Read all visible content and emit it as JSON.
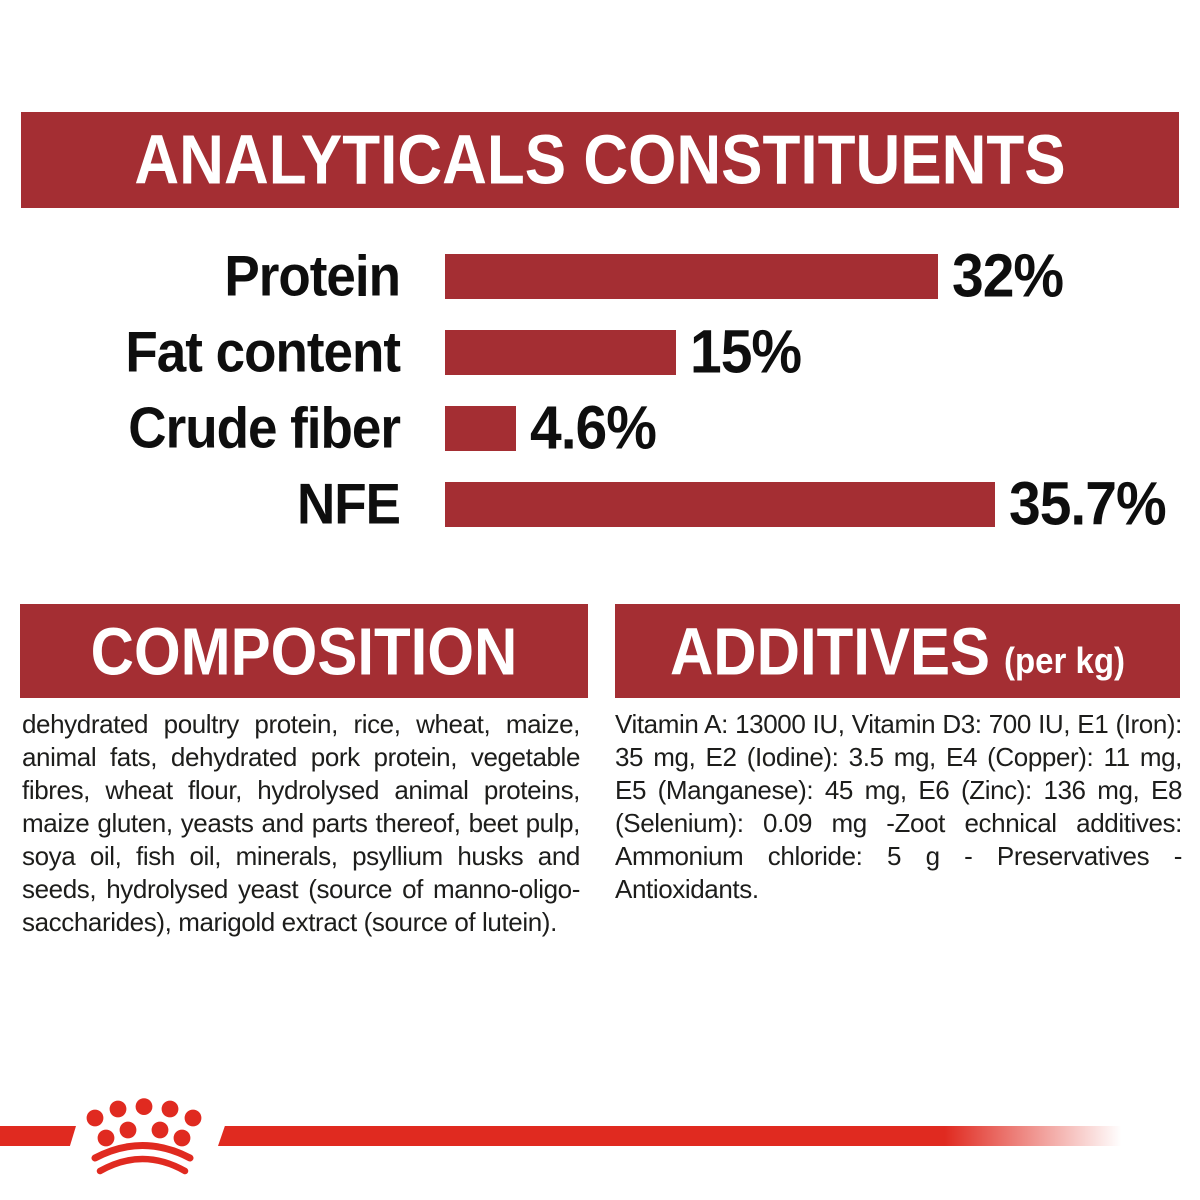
{
  "analyticals": {
    "title": "ANALYTICALS CONSTITUENTS"
  },
  "chart_data": {
    "type": "bar",
    "orientation": "horizontal",
    "categories": [
      "Protein",
      "Fat content",
      "Crude fiber",
      "NFE"
    ],
    "values": [
      32,
      15,
      4.6,
      35.7
    ],
    "value_labels": [
      "32%",
      "15%",
      "4.6%",
      "35.7%"
    ],
    "unit": "%",
    "xlim": [
      0,
      37
    ],
    "grid": false,
    "legend": false,
    "bar_color": "#A42E33",
    "label_color": "#0e0e0e"
  },
  "composition": {
    "title": "COMPOSITION",
    "body": "dehydrated poultry protein, rice, wheat, maize, animal fats, dehydrated pork protein, vegetable fibres, wheat flour, hydrolysed animal proteins, maize gluten, yeasts and parts thereof, beet pulp, soya oil, fish oil, minerals, psyllium husks and seeds, hydrolysed yeast (source of manno-oligo-saccharides), marigold extract (source of lutein)."
  },
  "additives": {
    "title": "ADDITIVES",
    "title_suffix": "(per kg)",
    "body": "Vitamin A: 13000 IU, Vitamin D3: 700 IU, E1 (Iron): 35 mg, E2 (Iodine): 3.5 mg, E4 (Copper): 11 mg, E5 (Manganese): 45 mg, E6 (Zinc): 136 mg, E8 (Selenium): 0.09 mg -Zoot echnical additives: Ammonium chloride: 5 g - Preservatives - Antioxidants."
  },
  "logo": {
    "name": "royal-canin-crown"
  },
  "colors": {
    "brand_dark_red": "#A42E33",
    "brand_bright_red": "#E02A20",
    "text_black": "#1d1d1b",
    "background": "#ffffff"
  }
}
